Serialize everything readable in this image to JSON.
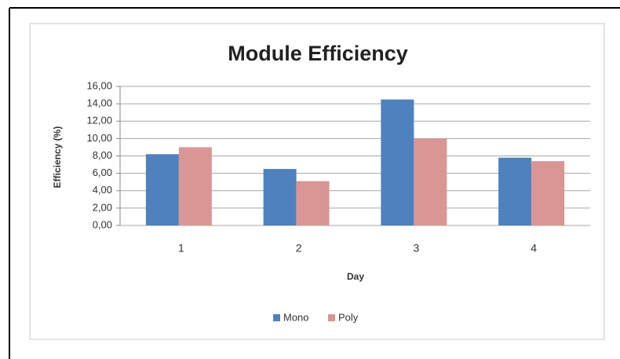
{
  "chart_data": {
    "type": "bar",
    "title": "Module Efficiency",
    "x_label": "Day",
    "y_label": "Efficiency (%)",
    "categories": [
      "1",
      "2",
      "3",
      "4"
    ],
    "series": [
      {
        "name": "Mono",
        "color": "#4f81bd",
        "values": [
          8.2,
          6.5,
          14.5,
          7.8
        ]
      },
      {
        "name": "Poly",
        "color": "#d99694",
        "values": [
          9.0,
          5.1,
          10.0,
          7.4
        ]
      }
    ],
    "ylim": [
      0,
      16
    ],
    "yticks": [
      {
        "value": 0,
        "label": "0,00"
      },
      {
        "value": 2,
        "label": "2,00"
      },
      {
        "value": 4,
        "label": "4,00"
      },
      {
        "value": 6,
        "label": "6,00"
      },
      {
        "value": 8,
        "label": "8,00"
      },
      {
        "value": 10,
        "label": "10,00"
      },
      {
        "value": 12,
        "label": "12,00"
      },
      {
        "value": 14,
        "label": "14,00"
      },
      {
        "value": 16,
        "label": "16,00"
      }
    ],
    "grid": true,
    "legend": "bottom"
  }
}
